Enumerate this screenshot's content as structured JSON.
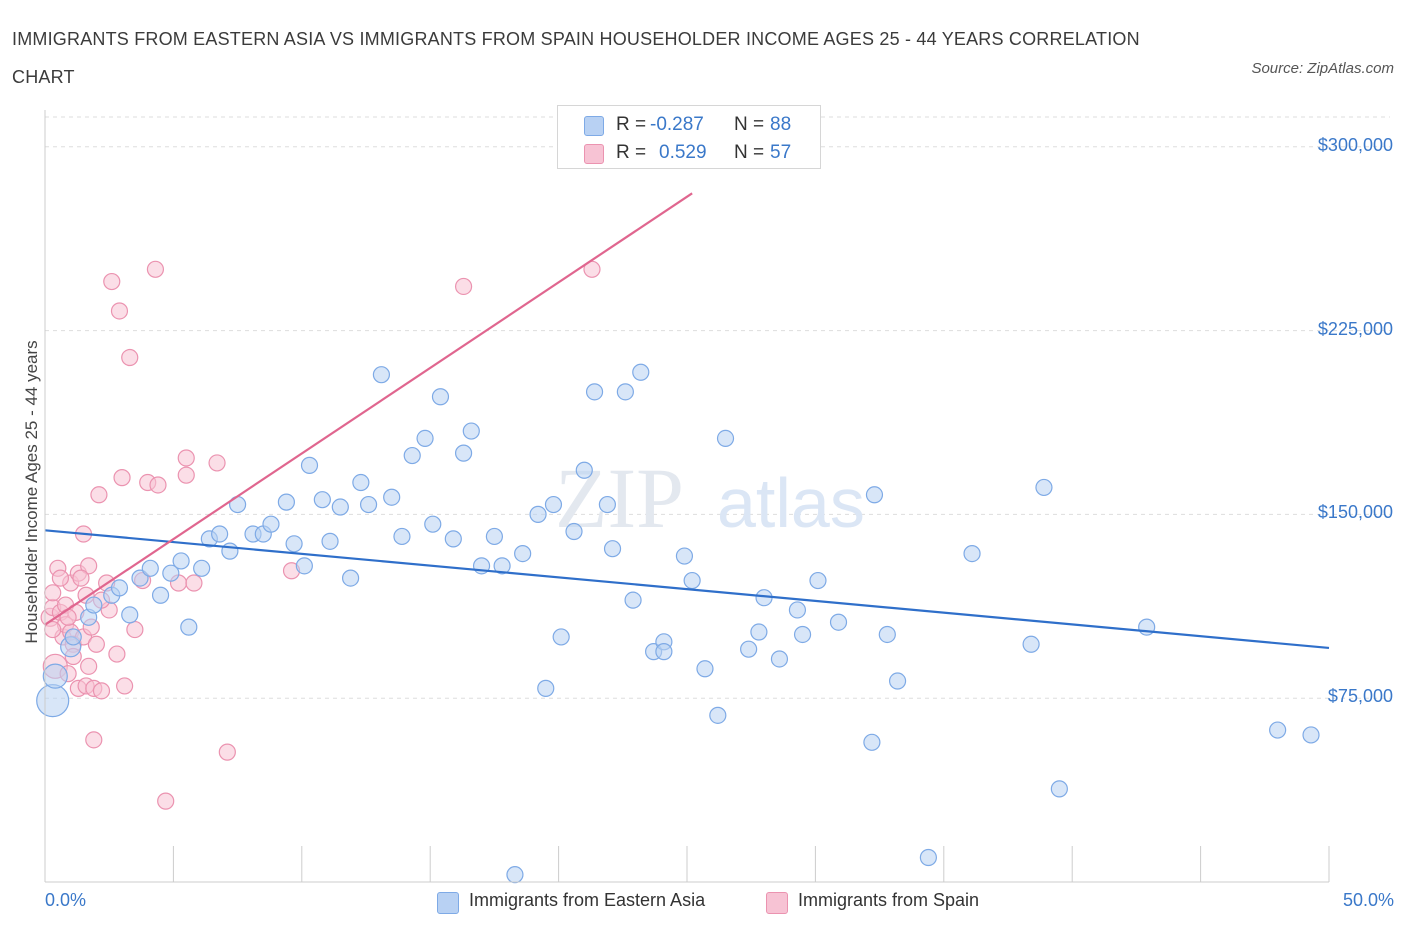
{
  "title": "IMMIGRANTS FROM EASTERN ASIA VS IMMIGRANTS FROM SPAIN HOUSEHOLDER INCOME AGES 25 - 44 YEARS CORRELATION CHART",
  "source": "Source: ZipAtlas.com",
  "watermark": {
    "zip": "ZIP",
    "atlas": "atlas"
  },
  "legend": {
    "r_label": "R =",
    "n_label": "N =",
    "rows": [
      {
        "r": "-0.287",
        "n": "88"
      },
      {
        "r": "0.529",
        "n": "57"
      }
    ]
  },
  "colors": {
    "blue_fill": "#b8d1f3",
    "blue_stroke": "#7eaae6",
    "blue_line": "#2f6fca",
    "pink_fill": "#f7c3d4",
    "pink_stroke": "#eb93b0",
    "pink_line": "#e0668f",
    "grid": "#dddddd",
    "axis_text": "#3a78c9"
  },
  "chart_data": {
    "type": "scatter",
    "title": "IMMIGRANTS FROM EASTERN ASIA VS IMMIGRANTS FROM SPAIN HOUSEHOLDER INCOME AGES 25 - 44 YEARS CORRELATION CHART",
    "xlabel": "",
    "ylabel": "Householder Income Ages 25 - 44 years",
    "xlim": [
      0,
      50
    ],
    "ylim": [
      0,
      315000
    ],
    "x_tick_labels": [
      {
        "value": 0,
        "label": "0.0%"
      },
      {
        "value": 50,
        "label": "50.0%"
      }
    ],
    "x_minor_ticks": [
      0,
      5,
      10,
      15,
      20,
      25,
      30,
      35,
      40,
      45,
      50
    ],
    "y_ticks": [
      {
        "value": 75000,
        "label": "$75,000"
      },
      {
        "value": 150000,
        "label": "$150,000"
      },
      {
        "value": 225000,
        "label": "$225,000"
      },
      {
        "value": 300000,
        "label": "$300,000"
      }
    ],
    "grid": "horizontal dashed",
    "legend_position": "bottom",
    "series": [
      {
        "name": "Immigrants from Eastern Asia",
        "color": "#b8d1f3",
        "trend": {
          "x": [
            0,
            50
          ],
          "y": [
            143500,
            95500
          ]
        },
        "points": [
          [
            0.3,
            74000,
            16
          ],
          [
            0.4,
            84000,
            12
          ],
          [
            1.0,
            96000,
            10
          ],
          [
            1.1,
            100000,
            8
          ],
          [
            1.7,
            108000,
            8
          ],
          [
            1.9,
            113000,
            8
          ],
          [
            2.6,
            117000,
            8
          ],
          [
            2.9,
            120000,
            8
          ],
          [
            3.3,
            109000,
            8
          ],
          [
            3.7,
            124000,
            8
          ],
          [
            4.1,
            128000,
            8
          ],
          [
            4.5,
            117000,
            8
          ],
          [
            4.9,
            126000,
            8
          ],
          [
            5.3,
            131000,
            8
          ],
          [
            5.6,
            104000,
            8
          ],
          [
            6.1,
            128000,
            8
          ],
          [
            6.4,
            140000,
            8
          ],
          [
            6.8,
            142000,
            8
          ],
          [
            7.2,
            135000,
            8
          ],
          [
            7.5,
            154000,
            8
          ],
          [
            8.1,
            142000,
            8
          ],
          [
            8.5,
            142000,
            8
          ],
          [
            8.8,
            146000,
            8
          ],
          [
            9.4,
            155000,
            8
          ],
          [
            9.7,
            138000,
            8
          ],
          [
            10.1,
            129000,
            8
          ],
          [
            10.3,
            170000,
            8
          ],
          [
            10.8,
            156000,
            8
          ],
          [
            11.1,
            139000,
            8
          ],
          [
            11.5,
            153000,
            8
          ],
          [
            11.9,
            124000,
            8
          ],
          [
            12.3,
            163000,
            8
          ],
          [
            12.6,
            154000,
            8
          ],
          [
            13.1,
            207000,
            8
          ],
          [
            13.5,
            157000,
            8
          ],
          [
            13.9,
            141000,
            8
          ],
          [
            14.3,
            174000,
            8
          ],
          [
            14.8,
            181000,
            8
          ],
          [
            15.1,
            146000,
            8
          ],
          [
            15.4,
            198000,
            8
          ],
          [
            15.9,
            140000,
            8
          ],
          [
            16.3,
            175000,
            8
          ],
          [
            16.6,
            184000,
            8
          ],
          [
            17.0,
            129000,
            8
          ],
          [
            17.5,
            141000,
            8
          ],
          [
            17.8,
            129000,
            8
          ],
          [
            18.6,
            134000,
            8
          ],
          [
            19.2,
            150000,
            8
          ],
          [
            19.5,
            79000,
            8
          ],
          [
            19.8,
            154000,
            8
          ],
          [
            20.1,
            100000,
            8
          ],
          [
            20.6,
            143000,
            8
          ],
          [
            21.0,
            168000,
            8
          ],
          [
            21.4,
            200000,
            8
          ],
          [
            21.9,
            154000,
            8
          ],
          [
            22.1,
            136000,
            8
          ],
          [
            22.6,
            200000,
            8
          ],
          [
            22.9,
            115000,
            8
          ],
          [
            23.2,
            208000,
            8
          ],
          [
            23.7,
            94000,
            8
          ],
          [
            24.1,
            98000,
            8
          ],
          [
            24.9,
            133000,
            8
          ],
          [
            25.2,
            123000,
            8
          ],
          [
            25.7,
            87000,
            8
          ],
          [
            26.2,
            68000,
            8
          ],
          [
            26.5,
            181000,
            8
          ],
          [
            27.4,
            95000,
            8
          ],
          [
            27.8,
            102000,
            8
          ],
          [
            28.0,
            116000,
            8
          ],
          [
            28.6,
            91000,
            8
          ],
          [
            29.3,
            111000,
            8
          ],
          [
            29.5,
            101000,
            8
          ],
          [
            30.1,
            123000,
            8
          ],
          [
            30.9,
            106000,
            8
          ],
          [
            32.2,
            57000,
            8
          ],
          [
            32.3,
            158000,
            8
          ],
          [
            32.8,
            101000,
            8
          ],
          [
            33.2,
            82000,
            8
          ],
          [
            34.4,
            10000,
            8
          ],
          [
            36.1,
            134000,
            8
          ],
          [
            38.4,
            97000,
            8
          ],
          [
            38.9,
            161000,
            8
          ],
          [
            39.5,
            38000,
            8
          ],
          [
            42.9,
            104000,
            8
          ],
          [
            48.0,
            62000,
            8
          ],
          [
            49.3,
            60000,
            8
          ],
          [
            18.3,
            3000,
            8
          ],
          [
            24.1,
            94000,
            8
          ]
        ]
      },
      {
        "name": "Immigrants from Spain",
        "color": "#f7c3d4",
        "trend": {
          "x": [
            0,
            25.2
          ],
          "y": [
            105000,
            281000
          ]
        },
        "points": [
          [
            0.2,
            108000,
            9
          ],
          [
            0.3,
            112000,
            8
          ],
          [
            0.3,
            118000,
            8
          ],
          [
            0.4,
            88000,
            12
          ],
          [
            0.5,
            128000,
            8
          ],
          [
            0.6,
            110000,
            8
          ],
          [
            0.7,
            100000,
            8
          ],
          [
            0.8,
            105000,
            8
          ],
          [
            0.8,
            113000,
            8
          ],
          [
            0.9,
            85000,
            8
          ],
          [
            1.0,
            122000,
            8
          ],
          [
            1.0,
            102000,
            8
          ],
          [
            1.1,
            97000,
            8
          ],
          [
            1.2,
            110000,
            8
          ],
          [
            1.3,
            79000,
            8
          ],
          [
            1.3,
            126000,
            8
          ],
          [
            1.5,
            142000,
            8
          ],
          [
            1.5,
            100000,
            8
          ],
          [
            1.6,
            80000,
            8
          ],
          [
            1.6,
            117000,
            8
          ],
          [
            1.7,
            129000,
            8
          ],
          [
            1.8,
            104000,
            8
          ],
          [
            1.9,
            58000,
            8
          ],
          [
            1.9,
            79000,
            8
          ],
          [
            2.0,
            97000,
            8
          ],
          [
            2.1,
            158000,
            8
          ],
          [
            2.2,
            78000,
            8
          ],
          [
            2.4,
            122000,
            8
          ],
          [
            2.5,
            111000,
            8
          ],
          [
            2.6,
            245000,
            8
          ],
          [
            2.8,
            93000,
            8
          ],
          [
            2.9,
            233000,
            8
          ],
          [
            3.0,
            165000,
            8
          ],
          [
            3.1,
            80000,
            8
          ],
          [
            3.3,
            214000,
            8
          ],
          [
            3.5,
            103000,
            8
          ],
          [
            3.8,
            123000,
            8
          ],
          [
            4.0,
            163000,
            8
          ],
          [
            4.3,
            250000,
            8
          ],
          [
            4.4,
            162000,
            8
          ],
          [
            4.7,
            33000,
            8
          ],
          [
            5.2,
            122000,
            8
          ],
          [
            5.5,
            173000,
            8
          ],
          [
            5.5,
            166000,
            8
          ],
          [
            5.8,
            122000,
            8
          ],
          [
            6.7,
            171000,
            8
          ],
          [
            7.1,
            53000,
            8
          ],
          [
            9.6,
            127000,
            8
          ],
          [
            16.3,
            243000,
            8
          ],
          [
            21.3,
            250000,
            8
          ],
          [
            0.3,
            103000,
            8
          ],
          [
            0.6,
            124000,
            8
          ],
          [
            1.1,
            92000,
            8
          ],
          [
            1.4,
            124000,
            8
          ],
          [
            2.2,
            115000,
            8
          ],
          [
            0.9,
            108000,
            8
          ],
          [
            1.7,
            88000,
            8
          ]
        ]
      }
    ]
  }
}
